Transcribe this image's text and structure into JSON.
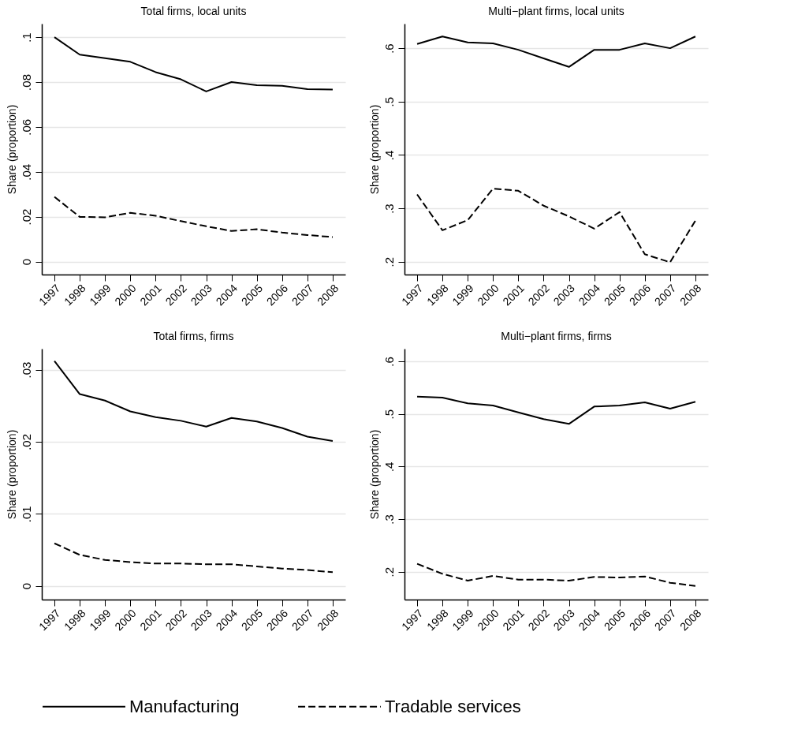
{
  "chart_data": [
    {
      "type": "line",
      "title": "Total firms, local units",
      "ylabel": "Share (proportion)",
      "categories": [
        "1997",
        "1998",
        "1999",
        "2000",
        "2001",
        "2002",
        "2003",
        "2004",
        "2005",
        "2006",
        "2007",
        "2008"
      ],
      "ylim": [
        -0.0058,
        0.106
      ],
      "yticks": [
        0,
        {
          "value": 0.02,
          "label": ".02"
        },
        {
          "value": 0.04,
          "label": ".04"
        },
        {
          "value": 0.06,
          "label": ".06"
        },
        {
          "value": 0.08,
          "label": ".08"
        },
        {
          "value": 0.1,
          "label": ".1"
        }
      ],
      "grid": "y",
      "legend": "bottom",
      "series": [
        {
          "name": "Manufacturing",
          "color": "#000000",
          "line_style": "solid",
          "values": [
            0.1,
            0.0922,
            0.0906,
            0.089,
            0.0844,
            0.0812,
            0.0758,
            0.08,
            0.0786,
            0.0783,
            0.0768,
            0.0766
          ]
        },
        {
          "name": "Tradable services",
          "color": "#000000",
          "line_style": "dashed",
          "values": [
            0.0288,
            0.0199,
            0.0197,
            0.0217,
            0.0204,
            0.018,
            0.0157,
            0.0136,
            0.0144,
            0.0129,
            0.0118,
            0.0109
          ]
        }
      ]
    },
    {
      "type": "line",
      "title": "Multi−plant firms, local units",
      "ylabel": "Share (proportion)",
      "categories": [
        "1997",
        "1998",
        "1999",
        "2000",
        "2001",
        "2002",
        "2003",
        "2004",
        "2005",
        "2006",
        "2007",
        "2008"
      ],
      "ylim": [
        0.176,
        0.646
      ],
      "yticks": [
        {
          "value": 0.2,
          "label": ".2"
        },
        {
          "value": 0.3,
          "label": ".3"
        },
        {
          "value": 0.4,
          "label": ".4"
        },
        {
          "value": 0.5,
          "label": ".5"
        },
        {
          "value": 0.6,
          "label": ".6"
        }
      ],
      "grid": "y",
      "legend": "bottom",
      "series": [
        {
          "color": "#000000",
          "line_style": "solid",
          "values": [
            0.608,
            0.622,
            0.611,
            0.609,
            0.597,
            0.581,
            0.565,
            0.597,
            0.597,
            0.609,
            0.6,
            0.622
          ]
        },
        {
          "color": "#000000",
          "line_style": "dashed",
          "values": [
            0.326,
            0.259,
            0.278,
            0.337,
            0.333,
            0.305,
            0.285,
            0.262,
            0.293,
            0.214,
            0.199,
            0.277
          ]
        }
      ]
    },
    {
      "type": "line",
      "title": "Total firms, firms",
      "ylabel": "Share (proportion)",
      "categories": [
        "1997",
        "1998",
        "1999",
        "2000",
        "2001",
        "2002",
        "2003",
        "2004",
        "2005",
        "2006",
        "2007",
        "2008"
      ],
      "ylim": [
        -0.0019,
        0.0329
      ],
      "yticks": [
        0,
        {
          "value": 0.01,
          "label": ".01"
        },
        {
          "value": 0.02,
          "label": ".02"
        },
        {
          "value": 0.03,
          "label": ".03"
        }
      ],
      "grid": "y",
      "legend": "bottom",
      "series": [
        {
          "color": "#000000",
          "line_style": "solid",
          "values": [
            0.0312,
            0.0266,
            0.0257,
            0.0242,
            0.0234,
            0.0229,
            0.0221,
            0.0233,
            0.0228,
            0.0219,
            0.0207,
            0.0201
          ]
        },
        {
          "color": "#000000",
          "line_style": "dashed",
          "values": [
            0.0059,
            0.0043,
            0.0036,
            0.0033,
            0.0031,
            0.0031,
            0.003,
            0.003,
            0.0027,
            0.0024,
            0.0022,
            0.0019
          ]
        }
      ]
    },
    {
      "type": "line",
      "title": "Multi−plant firms, firms",
      "ylabel": "Share (proportion)",
      "categories": [
        "1997",
        "1998",
        "1999",
        "2000",
        "2001",
        "2002",
        "2003",
        "2004",
        "2005",
        "2006",
        "2007",
        "2008"
      ],
      "ylim": [
        0.147,
        0.624
      ],
      "yticks": [
        {
          "value": 0.2,
          "label": ".2"
        },
        {
          "value": 0.3,
          "label": ".3"
        },
        {
          "value": 0.4,
          "label": ".4"
        },
        {
          "value": 0.5,
          "label": ".5"
        },
        {
          "value": 0.6,
          "label": ".6"
        }
      ],
      "grid": "y",
      "legend": "bottom",
      "series": [
        {
          "color": "#000000",
          "line_style": "solid",
          "values": [
            0.533,
            0.531,
            0.52,
            0.516,
            0.503,
            0.49,
            0.481,
            0.514,
            0.516,
            0.522,
            0.51,
            0.523
          ]
        },
        {
          "color": "#000000",
          "line_style": "dashed",
          "values": [
            0.215,
            0.196,
            0.183,
            0.192,
            0.185,
            0.185,
            0.183,
            0.19,
            0.189,
            0.191,
            0.179,
            0.173
          ]
        }
      ]
    }
  ]
}
